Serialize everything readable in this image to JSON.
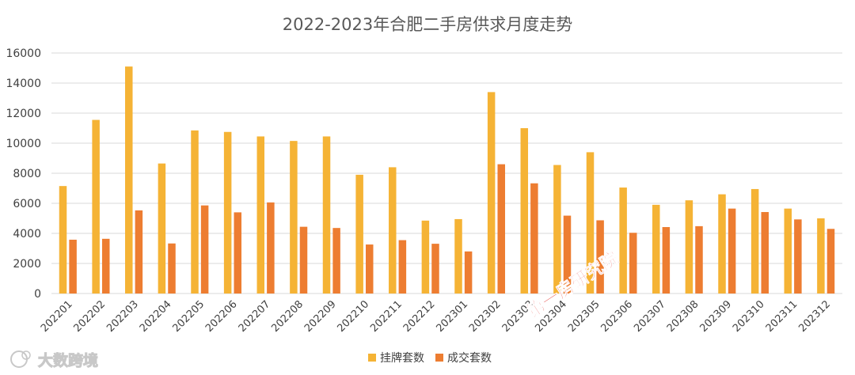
{
  "chart_data": {
    "type": "bar",
    "title": "2022-2023年合肥二手房供求月度走势",
    "categories": [
      "202201",
      "202202",
      "202203",
      "202204",
      "202205",
      "202206",
      "202207",
      "202208",
      "202209",
      "202210",
      "202211",
      "202212",
      "202301",
      "202302",
      "202303",
      "202304",
      "202305",
      "202306",
      "202307",
      "202308",
      "202309",
      "202310",
      "202311",
      "202312"
    ],
    "series": [
      {
        "name": "挂牌套数",
        "color": "#f5b335",
        "values": [
          7150,
          11550,
          15100,
          8650,
          10850,
          10750,
          10450,
          10150,
          10450,
          7900,
          8400,
          4850,
          4950,
          13400,
          11000,
          8550,
          9400,
          7050,
          5900,
          6200,
          6600,
          6950,
          5650,
          5000
        ]
      },
      {
        "name": "成交套数",
        "color": "#ed7d31",
        "values": [
          3580,
          3640,
          5530,
          3330,
          5860,
          5400,
          6060,
          4440,
          4360,
          3260,
          3550,
          3310,
          2800,
          8600,
          7330,
          5180,
          4870,
          4040,
          4420,
          4480,
          5650,
          5420,
          4930,
          4300
        ]
      }
    ],
    "yticks": [
      "0",
      "2000",
      "4000",
      "6000",
      "8000",
      "10000",
      "12000",
      "14000",
      "16000"
    ],
    "ylim": [
      0,
      16000
    ],
    "grid": true,
    "legend_position": "bottom"
  },
  "watermarks": {
    "diagonal_text": "第一房研究院",
    "logo_text": "大数跨境"
  }
}
